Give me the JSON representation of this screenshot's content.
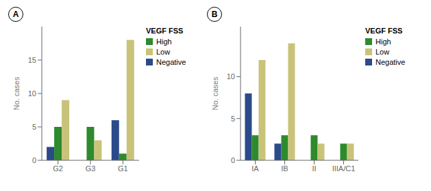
{
  "chart_data": [
    {
      "type": "bar",
      "title": "A",
      "legend_title": "VEGF FSS",
      "categories": [
        "G2",
        "G3",
        "G1"
      ],
      "series": [
        {
          "name": "Negative",
          "color": "#2b4a8a",
          "values": [
            2,
            0,
            6
          ]
        },
        {
          "name": "High",
          "color": "#2d8a2d",
          "values": [
            5,
            5,
            1
          ]
        },
        {
          "name": "Low",
          "color": "#c9c37a",
          "values": [
            9,
            3,
            18
          ]
        }
      ],
      "ylabel": "No. cases",
      "ylim": [
        0,
        20
      ],
      "yticks": [
        0,
        5,
        10,
        15
      ],
      "grid": false,
      "legend": "right"
    },
    {
      "type": "bar",
      "title": "B",
      "legend_title": "VEGF FSS",
      "categories": [
        "IA",
        "IB",
        "II",
        "IIIA/C1"
      ],
      "series": [
        {
          "name": "Negative",
          "color": "#2b4a8a",
          "values": [
            8,
            2,
            0,
            0
          ]
        },
        {
          "name": "High",
          "color": "#2d8a2d",
          "values": [
            3,
            3,
            3,
            2
          ]
        },
        {
          "name": "Low",
          "color": "#c9c37a",
          "values": [
            12,
            14,
            2,
            2
          ]
        }
      ],
      "ylabel": "No. cases",
      "ylim": [
        0,
        16
      ],
      "yticks": [
        0,
        5,
        10
      ],
      "grid": false,
      "legend": "right"
    }
  ]
}
